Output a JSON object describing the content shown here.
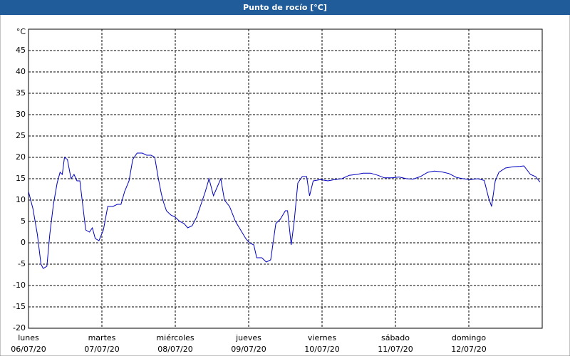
{
  "chart_data": {
    "type": "line",
    "title": "Punto de rocío [°C]",
    "x": [
      0,
      0.06,
      0.12,
      0.17,
      0.2,
      0.25,
      0.29,
      0.34,
      0.39,
      0.43,
      0.46,
      0.49,
      0.53,
      0.58,
      0.62,
      0.66,
      0.7,
      0.78,
      0.83,
      0.87,
      0.91,
      0.96,
      1.02,
      1.08,
      1.15,
      1.21,
      1.26,
      1.31,
      1.37,
      1.42,
      1.48,
      1.55,
      1.61,
      1.67,
      1.72,
      1.77,
      1.81,
      1.84,
      1.88,
      1.94,
      2.0,
      2.06,
      2.12,
      2.17,
      2.23,
      2.29,
      2.35,
      2.41,
      2.46,
      2.52,
      2.57,
      2.62,
      2.67,
      2.74,
      2.82,
      2.89,
      2.96,
      3.01,
      3.07,
      3.11,
      3.18,
      3.24,
      3.3,
      3.37,
      3.43,
      3.5,
      3.53,
      3.58,
      3.62,
      3.67,
      3.73,
      3.79,
      3.83,
      3.88,
      3.98,
      4.08,
      4.17,
      4.27,
      4.37,
      4.47,
      4.56,
      4.66,
      4.76,
      4.85,
      4.95,
      5.05,
      5.15,
      5.24,
      5.34,
      5.44,
      5.53,
      5.63,
      5.73,
      5.83,
      5.92,
      6.02,
      6.12,
      6.21,
      6.27,
      6.31,
      6.36,
      6.41,
      6.5,
      6.6,
      6.7,
      6.75,
      6.84,
      6.91,
      6.97
    ],
    "series": [
      {
        "color": "#0000c0",
        "values": [
          12,
          8,
          2,
          -5,
          -6,
          -5.5,
          2,
          9,
          14,
          16.5,
          16,
          20,
          19.5,
          15,
          16,
          14.5,
          14.5,
          3,
          2.5,
          3.5,
          1,
          0.5,
          3,
          8.5,
          8.5,
          9,
          9,
          12,
          14.5,
          19.5,
          21,
          21,
          20.5,
          20.5,
          20,
          15,
          11.5,
          9.5,
          7.5,
          6.5,
          6,
          5,
          4.5,
          3.5,
          4,
          6,
          9,
          12,
          15,
          11,
          13,
          15,
          10,
          8.5,
          5,
          3,
          1,
          0,
          -0.5,
          -3.5,
          -3.5,
          -4.5,
          -4,
          4.5,
          5.5,
          7.5,
          7.5,
          -0.5,
          5,
          14,
          15.5,
          15.5,
          11,
          14.5,
          14.8,
          14.5,
          14.8,
          15,
          15.8,
          16,
          16.3,
          16.3,
          15.8,
          15.2,
          15.2,
          15.4,
          15,
          14.9,
          15.5,
          16.5,
          16.8,
          16.6,
          16.2,
          15.3,
          15,
          14.8,
          15,
          14.6,
          10.5,
          8.5,
          14.5,
          16.5,
          17.5,
          17.8,
          17.9,
          18,
          16,
          15.5,
          14.2
        ]
      }
    ],
    "xlim": [
      0,
      7
    ],
    "xticks": [
      {
        "value": 0,
        "label": "lunes",
        "date": "06/07/20"
      },
      {
        "value": 1,
        "label": "martes",
        "date": "07/07/20"
      },
      {
        "value": 2,
        "label": "miércoles",
        "date": "08/07/20"
      },
      {
        "value": 3,
        "label": "jueves",
        "date": "09/07/20"
      },
      {
        "value": 4,
        "label": "viernes",
        "date": "10/07/20"
      },
      {
        "value": 5,
        "label": "sábado",
        "date": "11/07/20"
      },
      {
        "value": 6,
        "label": "domingo",
        "date": "12/07/20"
      }
    ],
    "ylim": [
      -20,
      50
    ],
    "yticks": [
      -20,
      -15,
      -10,
      -5,
      0,
      5,
      10,
      15,
      20,
      25,
      30,
      35,
      40,
      45,
      {
        "value": 50,
        "label": "°C"
      }
    ],
    "grid": true
  }
}
